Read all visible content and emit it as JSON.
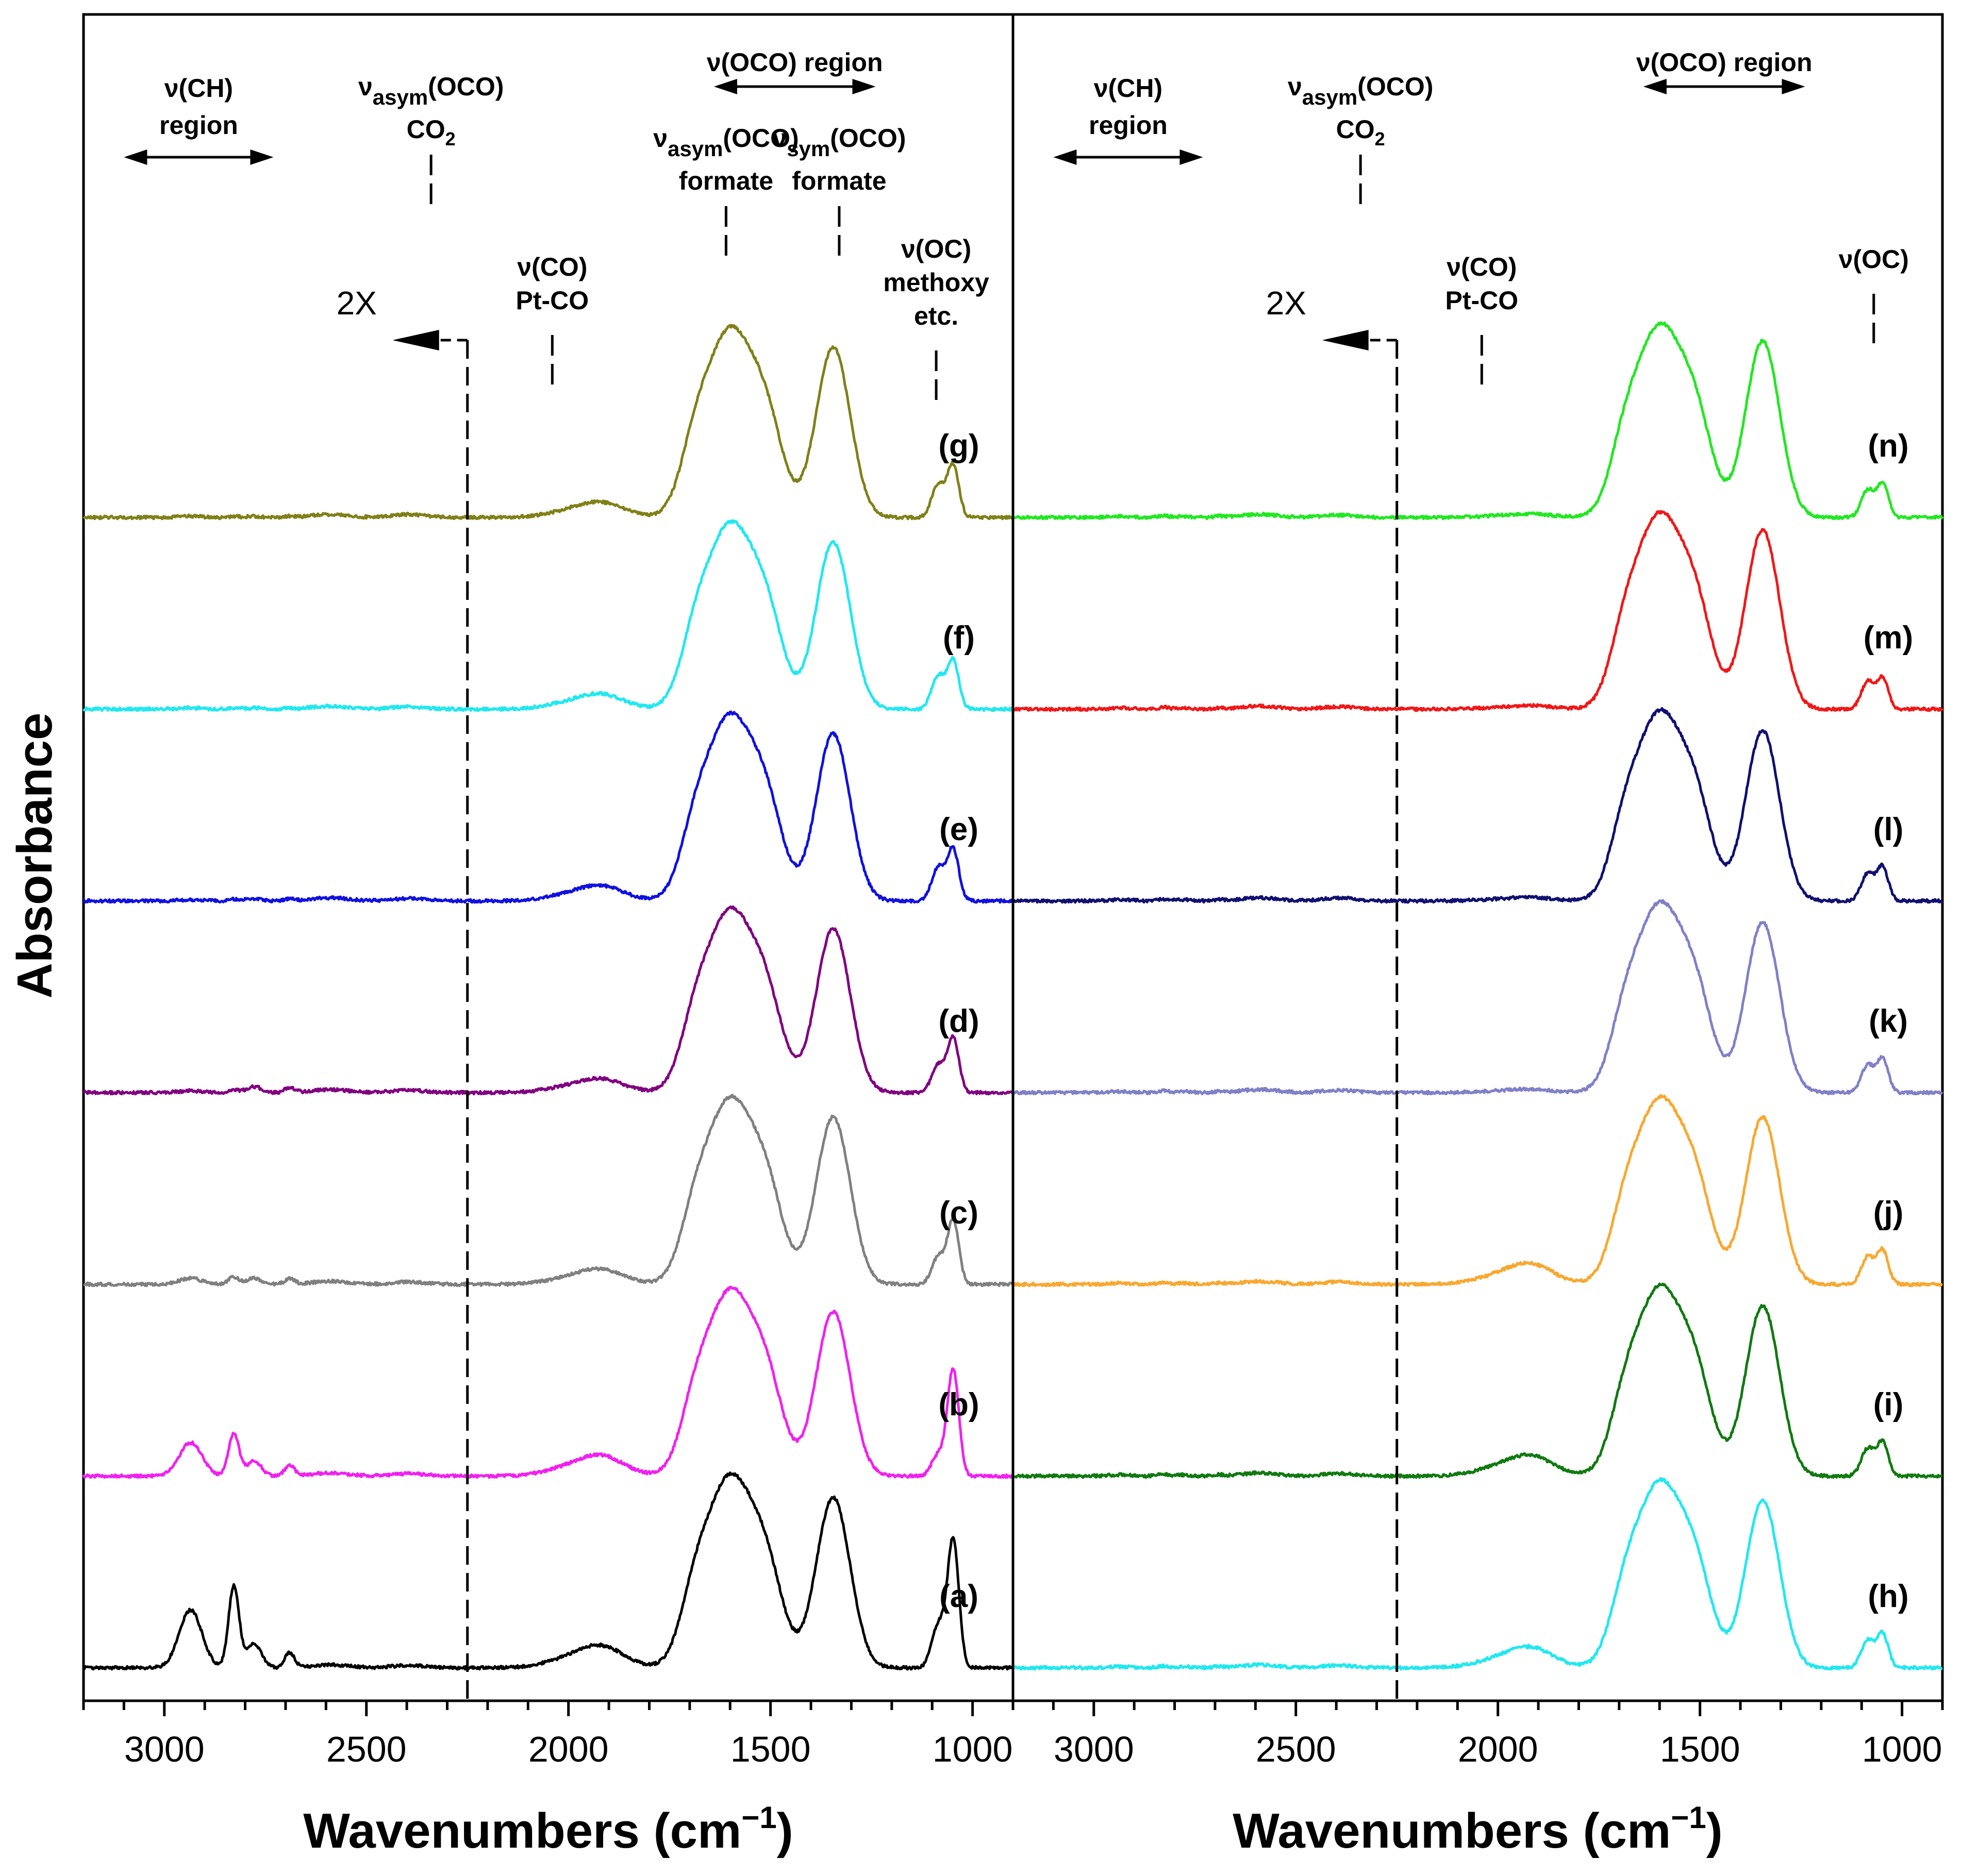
{
  "chart_data": {
    "type": "line",
    "y_axis_label": "Absorbance",
    "panels": [
      {
        "id": "left",
        "xlabel": "Wavenumbers (cm",
        "xlabel_sup": "−1",
        "xlabel_close": ")",
        "xlim": [
          3200,
          900
        ],
        "xticks": [
          3000,
          2500,
          2000,
          1500,
          1000
        ],
        "xtick_labels": [
          "3000",
          "2500",
          "2000",
          "1500",
          "1000"
        ],
        "scale_break_wavenumber": 2250,
        "scale_break_label": "2X",
        "region_annotations": [
          {
            "lines": [
              "ν(CH)",
              "region"
            ],
            "arrow": [
              3100,
              2730
            ]
          },
          {
            "lines": [
              "ν(OCO) region"
            ],
            "arrow": [
              1640,
              1240
            ]
          }
        ],
        "band_annotations": [
          {
            "main": "ν",
            "sub": "asym",
            "rest": "(OCO)",
            "line2": "CO",
            "line2_sub": "2",
            "wavenumber": 2340
          },
          {
            "lines": [
              "ν(CO)",
              "Pt-CO"
            ],
            "wavenumber": 2040
          },
          {
            "main": "ν",
            "sub": "asym",
            "rest": "(OCO)",
            "line2": "formate",
            "wavenumber": 1610
          },
          {
            "main": "ν",
            "sub": "sym",
            "rest": "(OCO)",
            "line2": "formate",
            "wavenumber": 1330
          },
          {
            "lines": [
              "ν(OC)",
              "methoxy",
              "etc."
            ],
            "wavenumber": 1090
          }
        ],
        "series": [
          {
            "label": "(a)",
            "color": "#000000",
            "baseline": 0.0,
            "peaks": {
              "ch_2930": 0.95,
              "ch_2830": 1.35,
              "ch_2780": 0.4,
              "ch_2690": 0.25,
              "co2": 0.04,
              "ptco": 0.32,
              "asym": 3.1,
              "sym": 2.8,
              "oc_1090": 0.7,
              "oc_1050": 2.1
            }
          },
          {
            "label": "(b)",
            "color": "#f020f0",
            "baseline": 1.0,
            "peaks": {
              "ch_2930": 0.55,
              "ch_2830": 0.7,
              "ch_2780": 0.25,
              "ch_2690": 0.18,
              "co2": 0.04,
              "ptco": 0.3,
              "asym": 3.0,
              "sym": 2.7,
              "oc_1090": 0.35,
              "oc_1050": 1.75
            }
          },
          {
            "label": "(c)",
            "color": "#808080",
            "baseline": 2.0,
            "peaks": {
              "ch_2930": 0.1,
              "ch_2830": 0.12,
              "ch_2780": 0.1,
              "ch_2690": 0.09,
              "co2": 0.04,
              "ptco": 0.22,
              "asym": 3.0,
              "sym": 2.75,
              "oc_1090": 0.45,
              "oc_1050": 1.05
            }
          },
          {
            "label": "(d)",
            "color": "#800080",
            "baseline": 3.0,
            "peaks": {
              "ch_2930": 0.03,
              "ch_2830": 0.04,
              "ch_2780": 0.1,
              "ch_2690": 0.08,
              "co2": 0.04,
              "ptco": 0.2,
              "asym": 2.95,
              "sym": 2.7,
              "oc_1090": 0.45,
              "oc_1050": 0.9
            }
          },
          {
            "label": "(e)",
            "color": "#1010e0",
            "baseline": 4.0,
            "peaks": {
              "ch_2930": 0.02,
              "ch_2830": 0.03,
              "ch_2780": 0.04,
              "ch_2690": 0.03,
              "co2": 0.04,
              "ptco": 0.22,
              "asym": 3.0,
              "sym": 2.75,
              "oc_1090": 0.55,
              "oc_1050": 0.85
            }
          },
          {
            "label": "(f)",
            "color": "#20e8f0",
            "baseline": 5.0,
            "peaks": {
              "ch_2930": 0.02,
              "ch_2830": 0.02,
              "ch_2780": 0.02,
              "ch_2690": 0.02,
              "co2": 0.04,
              "ptco": 0.22,
              "asym": 3.0,
              "sym": 2.75,
              "oc_1090": 0.55,
              "oc_1050": 0.8
            }
          },
          {
            "label": "(g)",
            "color": "#808018",
            "baseline": 6.0,
            "peaks": {
              "ch_2930": 0.02,
              "ch_2830": 0.02,
              "ch_2780": 0.02,
              "ch_2690": 0.02,
              "co2": 0.05,
              "ptco": 0.22,
              "asym": 3.05,
              "sym": 2.8,
              "oc_1090": 0.55,
              "oc_1050": 0.85
            }
          }
        ]
      },
      {
        "id": "right",
        "xlabel": "Wavenumbers (cm",
        "xlabel_sup": "−1",
        "xlabel_close": ")",
        "xlim": [
          3200,
          900
        ],
        "xticks": [
          3000,
          2500,
          2000,
          1500,
          1000
        ],
        "xtick_labels": [
          "3000",
          "2500",
          "2000",
          "1500",
          "1000"
        ],
        "scale_break_wavenumber": 2250,
        "scale_break_label": "2X",
        "region_annotations": [
          {
            "lines": [
              "ν(CH)",
              "region"
            ],
            "arrow": [
              3100,
              2730
            ]
          },
          {
            "lines": [
              "ν(OCO) region"
            ],
            "arrow": [
              1640,
              1240
            ]
          }
        ],
        "band_annotations": [
          {
            "main": "ν",
            "sub": "asym",
            "rest": "(OCO)",
            "line2": "CO",
            "line2_sub": "2",
            "wavenumber": 2340
          },
          {
            "lines": [
              "ν(CO)",
              "Pt-CO"
            ],
            "wavenumber": 2040
          },
          {
            "lines": [
              "ν(OC)"
            ],
            "wavenumber": 1070
          }
        ],
        "series": [
          {
            "label": "(h)",
            "color": "#20e8f0",
            "baseline": 0.0,
            "peaks": {
              "ch_2930": 0.02,
              "ch_2830": 0.03,
              "ch_2780": 0.02,
              "ch_2690": 0.02,
              "co2": 0.04,
              "ptco": 0.3,
              "asym": 3.0,
              "sym": 2.75,
              "oc_1090": 0.45,
              "oc_1050": 0.55
            }
          },
          {
            "label": "(i)",
            "color": "#107a10",
            "baseline": 1.0,
            "peaks": {
              "ch_2930": 0.02,
              "ch_2830": 0.03,
              "ch_2780": 0.02,
              "ch_2690": 0.02,
              "co2": 0.04,
              "ptco": 0.3,
              "asym": 3.05,
              "sym": 2.8,
              "oc_1090": 0.45,
              "oc_1050": 0.55
            }
          },
          {
            "label": "(j)",
            "color": "#f8a830",
            "baseline": 2.0,
            "peaks": {
              "ch_2930": 0.02,
              "ch_2830": 0.03,
              "ch_2780": 0.02,
              "ch_2690": 0.02,
              "co2": 0.04,
              "ptco": 0.3,
              "asym": 3.0,
              "sym": 2.75,
              "oc_1090": 0.45,
              "oc_1050": 0.55
            }
          },
          {
            "label": "(k)",
            "color": "#8080c8",
            "baseline": 3.0,
            "peaks": {
              "ch_2930": 0.02,
              "ch_2830": 0.03,
              "ch_2780": 0.02,
              "ch_2690": 0.02,
              "co2": 0.04,
              "ptco": 0.05,
              "asym": 3.05,
              "sym": 2.8,
              "oc_1090": 0.45,
              "oc_1050": 0.55
            }
          },
          {
            "label": "(l)",
            "color": "#101070",
            "baseline": 4.0,
            "peaks": {
              "ch_2930": 0.02,
              "ch_2830": 0.03,
              "ch_2780": 0.02,
              "ch_2690": 0.02,
              "co2": 0.05,
              "ptco": 0.05,
              "asym": 3.05,
              "sym": 2.8,
              "oc_1090": 0.45,
              "oc_1050": 0.55
            }
          },
          {
            "label": "(m)",
            "color": "#f01818",
            "baseline": 5.0,
            "peaks": {
              "ch_2930": 0.02,
              "ch_2830": 0.03,
              "ch_2780": 0.02,
              "ch_2690": 0.02,
              "co2": 0.04,
              "ptco": 0.05,
              "asym": 3.15,
              "sym": 2.95,
              "oc_1090": 0.45,
              "oc_1050": 0.5
            }
          },
          {
            "label": "(n)",
            "color": "#20e820",
            "baseline": 6.0,
            "peaks": {
              "ch_2930": 0.02,
              "ch_2830": 0.03,
              "ch_2780": 0.02,
              "ch_2690": 0.02,
              "co2": 0.04,
              "ptco": 0.05,
              "asym": 3.1,
              "sym": 2.9,
              "oc_1090": 0.45,
              "oc_1050": 0.55
            }
          }
        ]
      }
    ]
  }
}
